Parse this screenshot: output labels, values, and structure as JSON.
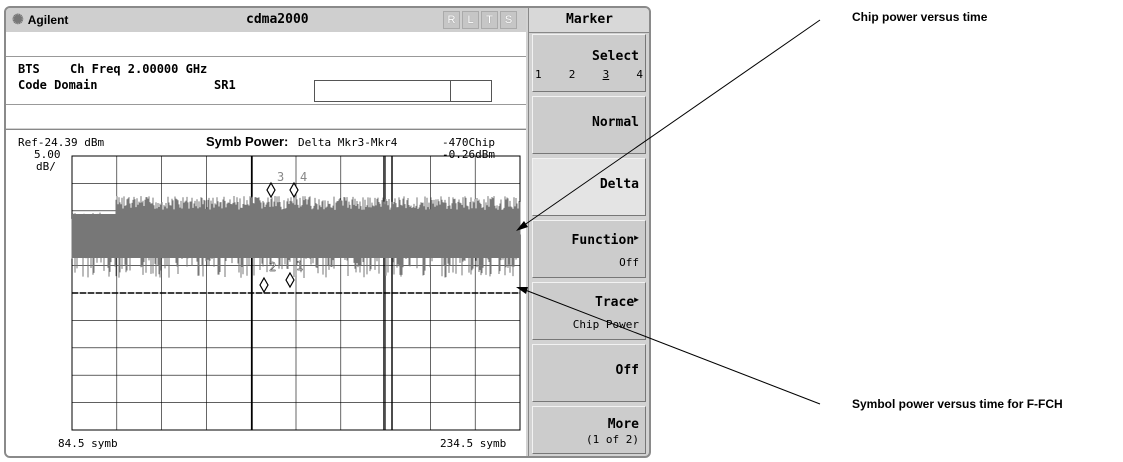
{
  "window": {
    "brand": "Agilent",
    "brand_icon": "agilent-spark-icon",
    "title": "cdma2000",
    "status_indicators": [
      "R",
      "L",
      "T",
      "S"
    ]
  },
  "info": {
    "line1_label": "BTS",
    "line1_value": "Ch Freq 2.00000 GHz",
    "line2_label": "Code Domain",
    "line2_value": "SR1"
  },
  "plot": {
    "ref_level": "Ref-24.39 dBm",
    "scale_value": "5.00",
    "scale_unit": "dB/",
    "title": "Symb Power:",
    "marker_mode": "Delta Mkr3-Mkr4",
    "delta_x": "-470Chip",
    "delta_y": "-0.26dBm",
    "x_start": "84.5 symb",
    "x_end": "234.5 symb",
    "markers": [
      "1",
      "2",
      "3",
      "4"
    ],
    "trace_color": "#777777"
  },
  "softkeys": {
    "menu_title": "Marker",
    "select_label": "Select",
    "select_options": [
      "1",
      "2",
      "3",
      "4"
    ],
    "select_selected": "3",
    "normal": "Normal",
    "delta": "Delta",
    "function_label": "Function",
    "function_value": "Off",
    "trace_label": "Trace",
    "trace_value": "Chip Power",
    "off": "Off",
    "more_label": "More",
    "more_value": "(1 of 2)"
  },
  "annotations": {
    "chip_power": "Chip power versus time",
    "symbol_power": "Symbol power versus time for F-FCH"
  }
}
